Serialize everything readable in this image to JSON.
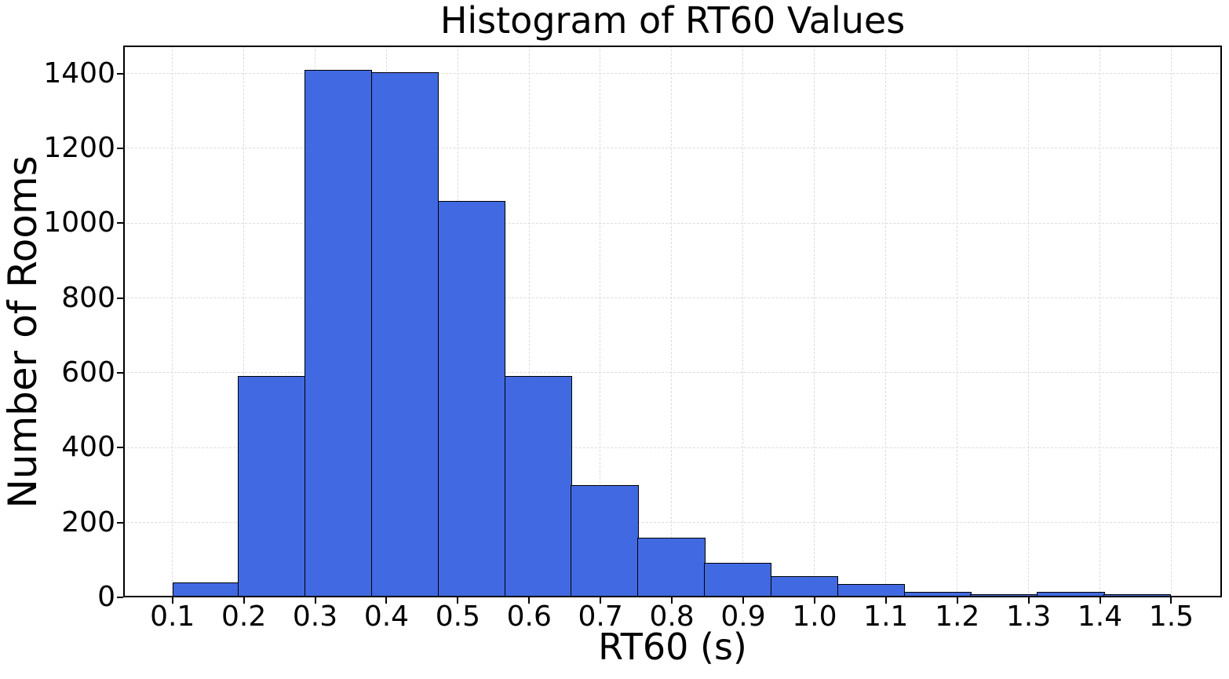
{
  "chart_data": {
    "type": "bar",
    "subtype": "histogram",
    "title": "Histogram of RT60 Values",
    "xlabel": "RT60 (s)",
    "ylabel": "Number of Rooms",
    "bar_color": "#4169e1",
    "bar_edge_color": "#000000",
    "grid": true,
    "grid_color": "#dcdcdc",
    "grid_style": "dashed",
    "legend": "none",
    "xlim": [
      0.031,
      1.571
    ],
    "ylim": [
      0,
      1475
    ],
    "bin_edges": [
      0.1,
      0.1933,
      0.2867,
      0.38,
      0.4733,
      0.5667,
      0.66,
      0.7533,
      0.8467,
      0.94,
      1.0333,
      1.1267,
      1.22,
      1.3133,
      1.4067,
      1.5
    ],
    "counts": [
      40,
      592,
      1410,
      1403,
      1060,
      592,
      301,
      160,
      92,
      57,
      35,
      15,
      9,
      14,
      9
    ],
    "xticks": {
      "values": [
        0.1,
        0.2,
        0.3,
        0.4,
        0.5,
        0.6,
        0.7,
        0.8,
        0.9,
        1.0,
        1.1,
        1.2,
        1.3,
        1.4,
        1.5
      ],
      "labels": [
        "0.1",
        "0.2",
        "0.3",
        "0.4",
        "0.5",
        "0.6",
        "0.7",
        "0.8",
        "0.9",
        "1.0",
        "1.1",
        "1.2",
        "1.3",
        "1.4",
        "1.5"
      ]
    },
    "yticks": {
      "values": [
        0,
        200,
        400,
        600,
        800,
        1000,
        1200,
        1400
      ],
      "labels": [
        "0",
        "200",
        "400",
        "600",
        "800",
        "1000",
        "1200",
        "1400"
      ]
    }
  }
}
